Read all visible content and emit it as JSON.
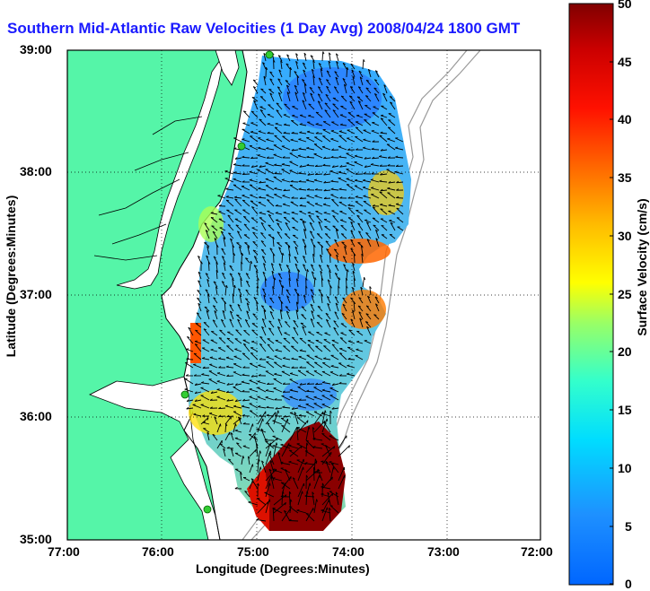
{
  "title": "Southern Mid-Atlantic Raw Velocities (1 Day Avg) 2008/04/24 1800 GMT",
  "map": {
    "xlabel": "Longitude (Degrees:Minutes)",
    "ylabel": "Latitude (Degrees:Minutes)",
    "lon_ticks": [
      "77:00",
      "76:00",
      "75:00",
      "74:00",
      "73:00",
      "72:00"
    ],
    "lat_ticks": [
      "39:00",
      "38:00",
      "37:00",
      "36:00",
      "35:00"
    ],
    "lon_range": [
      -77,
      -72
    ],
    "lat_range": [
      35,
      39
    ],
    "grid": "dotted",
    "colors": {
      "land": "#55f5a8",
      "water": "#ffffff",
      "coast": "#000000",
      "bathymetry": "#9a9a9a",
      "station": "#33cc33"
    }
  },
  "colorbar": {
    "label": "Surface Velocity (cm/s)",
    "ticks": [
      "50",
      "45",
      "40",
      "35",
      "30",
      "25",
      "20",
      "15",
      "10",
      "5",
      "0"
    ],
    "range": [
      0,
      50
    ],
    "colormap": "jet"
  }
}
